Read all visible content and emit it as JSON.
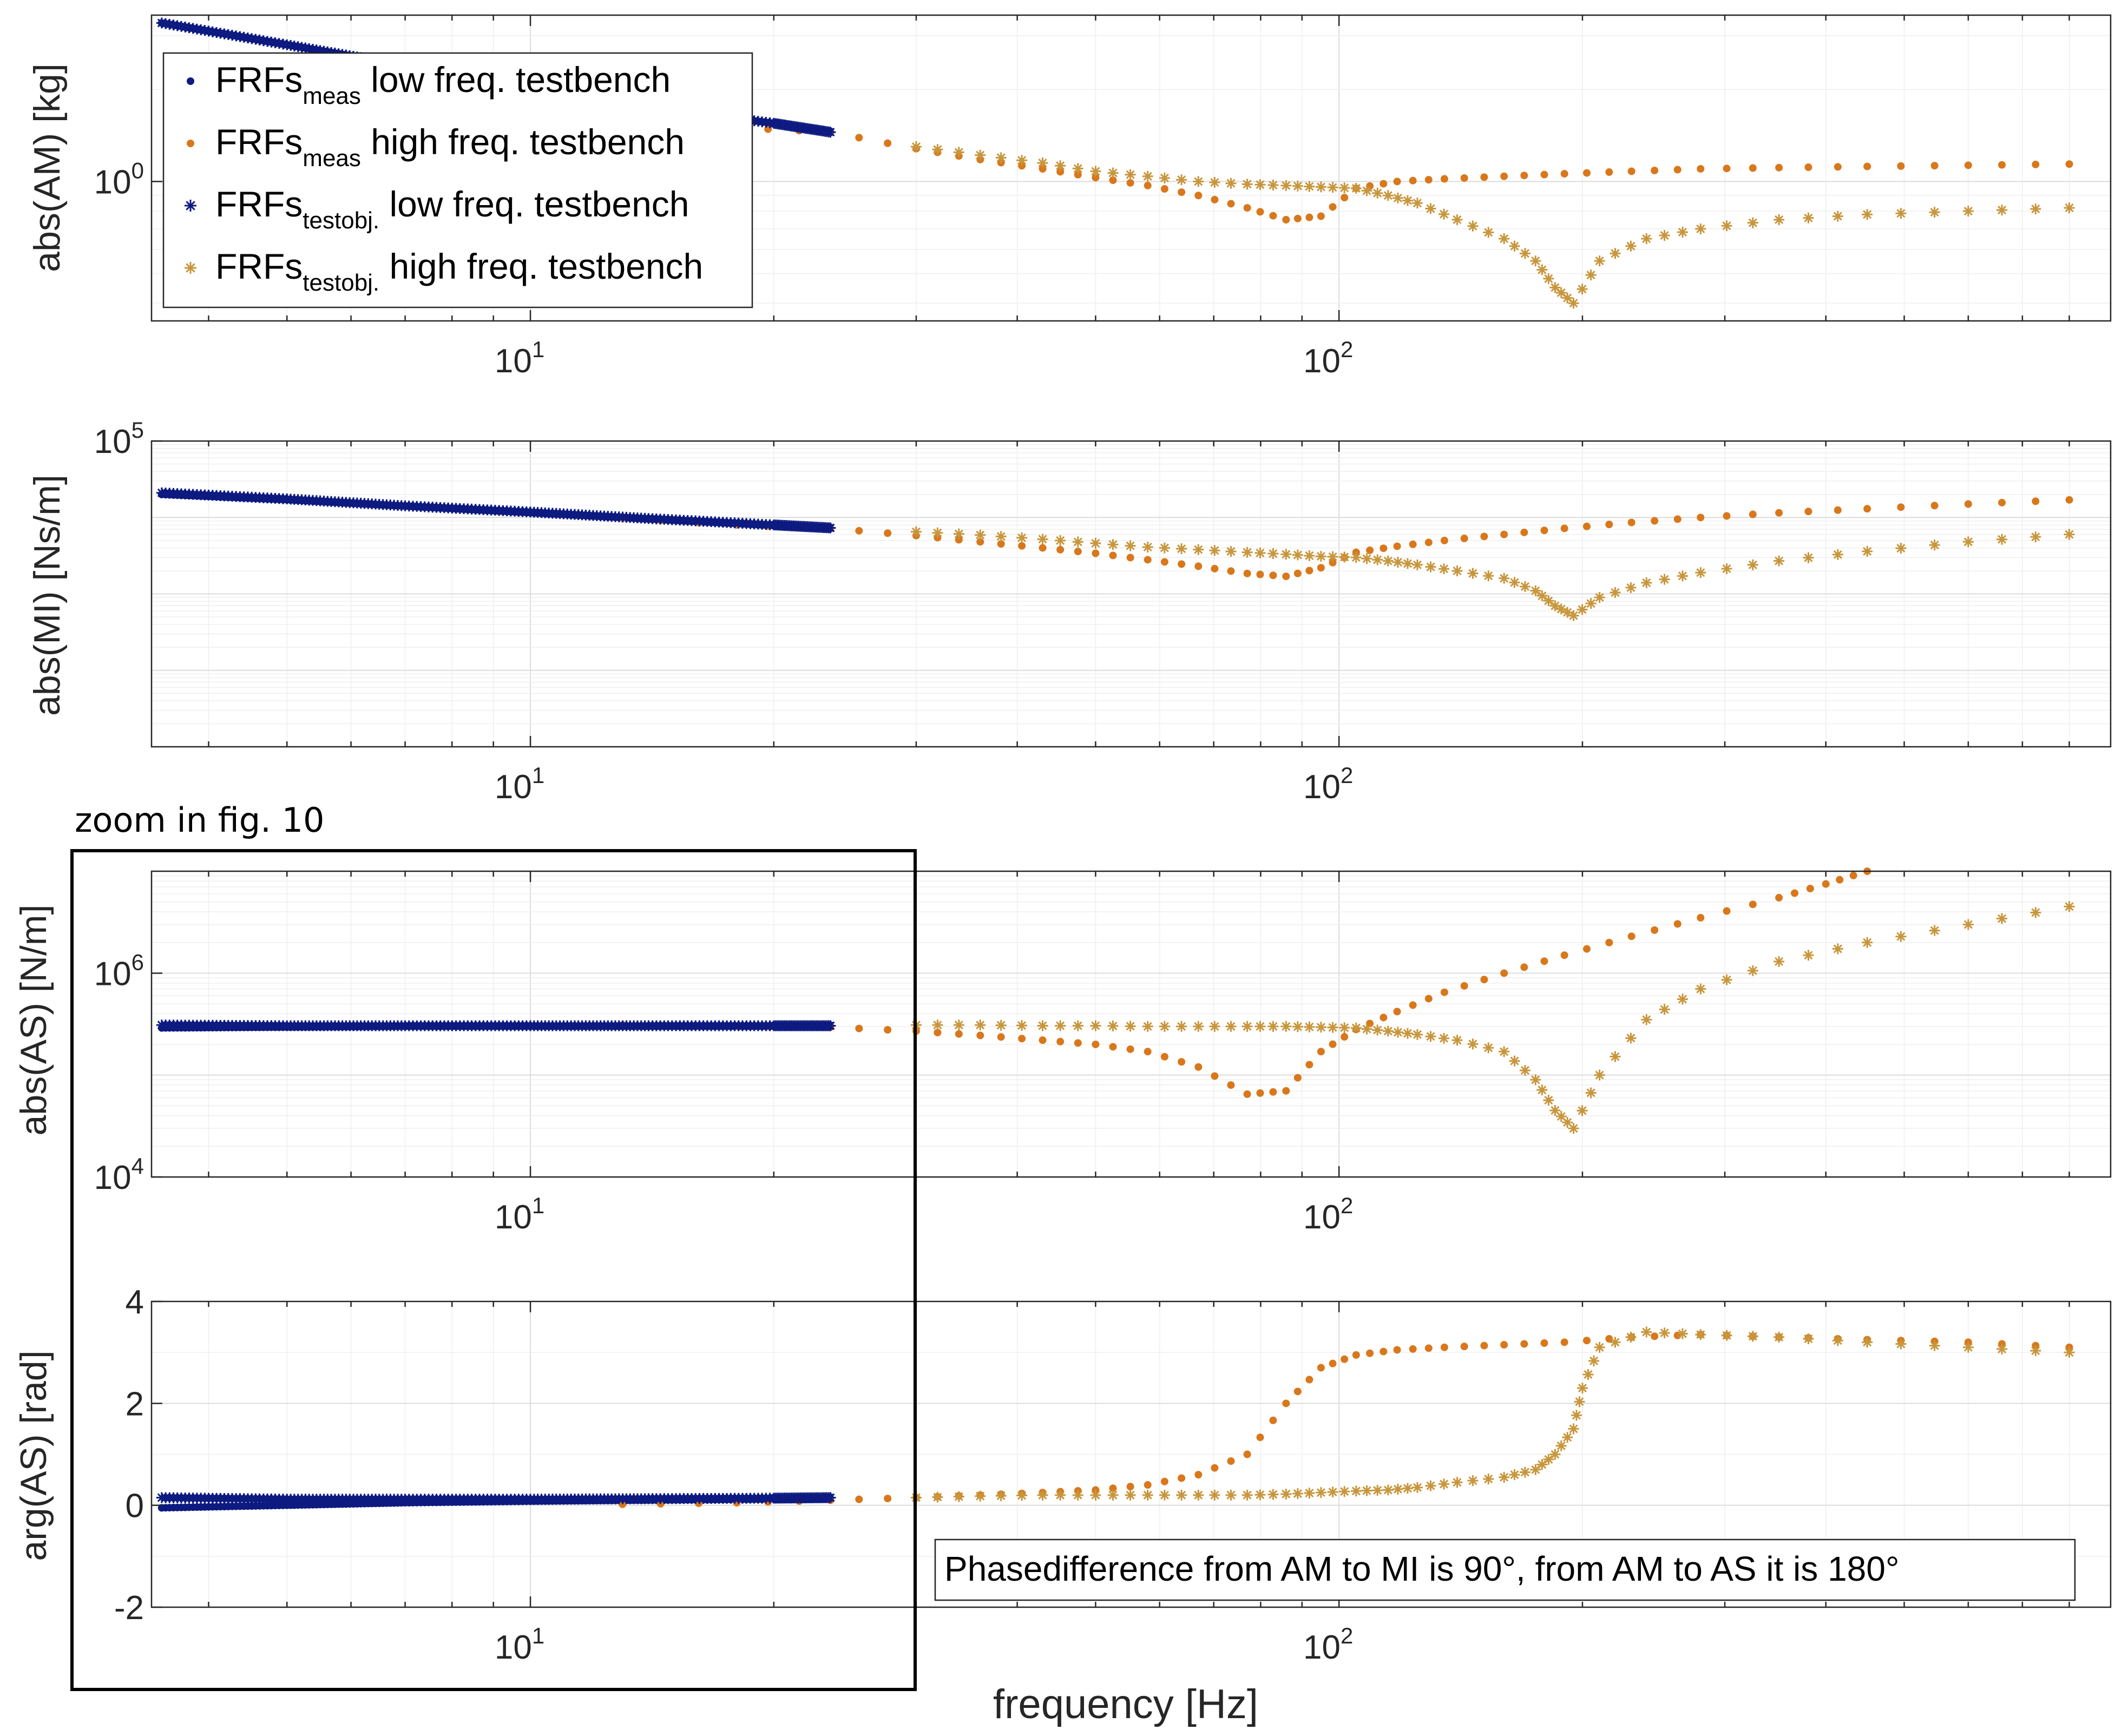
{
  "colors": {
    "low_freq": "#0d1a80",
    "high_freq_meas": "#d9771b",
    "high_freq_testobj": "#c8963c"
  },
  "legend": [
    {
      "base": "FRFs",
      "sub": "meas",
      "text": " low freq. testbench",
      "marker": "dot",
      "color": "#0d1a80"
    },
    {
      "base": "FRFs",
      "sub": "meas",
      "text": " high freq. testbench",
      "marker": "dot",
      "color": "#d9771b"
    },
    {
      "base": "FRFs",
      "sub": "testobj.",
      "text": " low freq. testbench",
      "marker": "star",
      "color": "#0d1a80"
    },
    {
      "base": "FRFs",
      "sub": "testobj.",
      "text": " high freq. testbench",
      "marker": "star",
      "color": "#c8963c"
    }
  ],
  "x_axis": {
    "label": "frequency [Hz]",
    "scale": "log",
    "xlim": [
      3.4,
      900
    ],
    "tick_labels": [
      {
        "base": "10",
        "exp": "1",
        "value": 10
      },
      {
        "base": "10",
        "exp": "2",
        "value": 100
      }
    ]
  },
  "annotations": {
    "zoom": "zoom in fig. 10",
    "phase_note": "Phasedifference from AM to MI is 90°, from AM to AS it is 180°"
  },
  "chart_data": [
    {
      "type": "scatter",
      "id": "am",
      "ylabel": "abs(AM) [kg]",
      "yscale": "log",
      "ylim": [
        0.35,
        3.5
      ],
      "ytick_labels": [
        {
          "base": "10",
          "exp": "0",
          "value": 1
        }
      ],
      "series": [
        {
          "name": "FRFs_meas low freq. testbench",
          "marker": "dot",
          "color": "#0d1a80",
          "x": [
            3.5,
            5,
            7,
            10,
            14,
            20,
            23.5
          ],
          "y": [
            3.3,
            2.8,
            2.4,
            2.0,
            1.75,
            1.55,
            1.45
          ]
        },
        {
          "name": "FRFs_meas high freq. testbench",
          "marker": "dot",
          "color": "#d9771b",
          "x": [
            13,
            18,
            23.5,
            30,
            36,
            43,
            50,
            58,
            67,
            77,
            86,
            95,
            105,
            118,
            135,
            160,
            190,
            230,
            280,
            350,
            450,
            600,
            800
          ],
          "y": [
            1.6,
            1.5,
            1.45,
            1.28,
            1.18,
            1.1,
            1.03,
            0.97,
            0.9,
            0.82,
            0.75,
            0.77,
            0.95,
            1.0,
            1.02,
            1.04,
            1.06,
            1.08,
            1.1,
            1.11,
            1.12,
            1.13,
            1.14
          ]
        },
        {
          "name": "FRFs_testobj. low freq. testbench",
          "marker": "star",
          "color": "#0d1a80",
          "x": [
            3.5,
            5,
            7,
            10,
            14,
            20,
            23.5
          ],
          "y": [
            3.3,
            2.8,
            2.4,
            2.0,
            1.75,
            1.55,
            1.45
          ]
        },
        {
          "name": "FRFs_testobj. high freq. testbench",
          "marker": "star",
          "color": "#c8963c",
          "x": [
            30,
            36,
            43,
            50,
            58,
            67,
            77,
            86,
            95,
            105,
            115,
            125,
            140,
            160,
            175,
            185,
            195,
            210,
            240,
            280,
            350,
            450,
            600,
            800
          ],
          "y": [
            1.3,
            1.22,
            1.15,
            1.08,
            1.04,
            1.0,
            0.98,
            0.97,
            0.96,
            0.95,
            0.9,
            0.85,
            0.75,
            0.65,
            0.55,
            0.45,
            0.4,
            0.55,
            0.65,
            0.7,
            0.75,
            0.78,
            0.8,
            0.82
          ]
        }
      ]
    },
    {
      "type": "scatter",
      "id": "mi",
      "ylabel": "abs(MI) [Ns/m]",
      "yscale": "log",
      "ylim": [
        10,
        100000
      ],
      "ytick_labels": [
        {
          "base": "10",
          "exp": "5",
          "value": 100000
        }
      ],
      "series": [
        {
          "name": "FRFs_meas low freq. testbench",
          "marker": "dot",
          "color": "#0d1a80",
          "x": [
            3.5,
            5,
            7,
            10,
            14,
            20,
            23.5
          ],
          "y": [
            20000,
            17000,
            14000,
            11500,
            9500,
            7800,
            7200
          ]
        },
        {
          "name": "FRFs_meas high freq. testbench",
          "marker": "dot",
          "color": "#d9771b",
          "x": [
            13,
            18,
            23.5,
            30,
            36,
            43,
            50,
            58,
            67,
            77,
            86,
            95,
            105,
            118,
            135,
            160,
            190,
            230,
            280,
            350,
            450,
            600,
            800
          ],
          "y": [
            9800,
            8000,
            7200,
            5800,
            4800,
            4000,
            3400,
            2800,
            2300,
            1850,
            1700,
            2200,
            3500,
            4200,
            5000,
            6000,
            7200,
            8600,
            10000,
            11500,
            13000,
            15000,
            17000
          ]
        },
        {
          "name": "FRFs_testobj. low freq. testbench",
          "marker": "star",
          "color": "#0d1a80",
          "x": [
            3.5,
            5,
            7,
            10,
            14,
            20,
            23.5
          ],
          "y": [
            21000,
            17500,
            14200,
            11800,
            9700,
            8000,
            7300
          ]
        },
        {
          "name": "FRFs_testobj. high freq. testbench",
          "marker": "star",
          "color": "#c8963c",
          "x": [
            30,
            36,
            43,
            50,
            58,
            67,
            77,
            86,
            95,
            105,
            115,
            125,
            140,
            160,
            175,
            185,
            195,
            210,
            240,
            280,
            350,
            450,
            600,
            800
          ],
          "y": [
            6500,
            5900,
            5200,
            4600,
            4100,
            3800,
            3500,
            3300,
            3100,
            3000,
            2700,
            2400,
            2000,
            1600,
            1100,
            700,
            520,
            900,
            1400,
            1900,
            2700,
            3600,
            4800,
            6000
          ]
        }
      ]
    },
    {
      "type": "scatter",
      "id": "as_abs",
      "ylabel": "abs(AS) [N/m]",
      "yscale": "log",
      "ylim": [
        10000,
        10000000
      ],
      "ytick_labels": [
        {
          "base": "10",
          "exp": "4",
          "value": 10000
        },
        {
          "base": "10",
          "exp": "6",
          "value": 1000000
        }
      ],
      "series": [
        {
          "name": "FRFs_meas low freq. testbench",
          "marker": "dot",
          "color": "#0d1a80",
          "x": [
            3.5,
            5,
            7,
            10,
            14,
            20,
            23.5
          ],
          "y": [
            290000,
            295000,
            300000,
            300000,
            300000,
            300000,
            300000
          ]
        },
        {
          "name": "FRFs_meas high freq. testbench",
          "marker": "dot",
          "color": "#d9771b",
          "x": [
            13,
            18,
            23.5,
            30,
            36,
            43,
            50,
            58,
            67,
            77,
            86,
            95,
            105,
            118,
            135,
            160,
            190,
            230,
            280,
            350,
            400,
            450
          ],
          "y": [
            310000,
            300000,
            295000,
            270000,
            245000,
            220000,
            200000,
            170000,
            120000,
            65000,
            70000,
            170000,
            280000,
            420000,
            650000,
            1000000,
            1500000,
            2300000,
            3500000,
            5500000,
            7500000,
            10000000
          ]
        },
        {
          "name": "FRFs_testobj. low freq. testbench",
          "marker": "star",
          "color": "#0d1a80",
          "x": [
            3.5,
            5,
            7,
            10,
            14,
            20,
            23.5
          ],
          "y": [
            310000,
            305000,
            305000,
            305000,
            305000,
            305000,
            305000
          ]
        },
        {
          "name": "FRFs_testobj. high freq. testbench",
          "marker": "star",
          "color": "#c8963c",
          "x": [
            30,
            36,
            43,
            50,
            58,
            67,
            77,
            86,
            95,
            105,
            115,
            125,
            140,
            160,
            175,
            185,
            195,
            210,
            240,
            280,
            350,
            450,
            600,
            800
          ],
          "y": [
            310000,
            310000,
            305000,
            305000,
            300000,
            300000,
            300000,
            300000,
            295000,
            290000,
            270000,
            250000,
            220000,
            170000,
            90000,
            45000,
            30000,
            100000,
            350000,
            700000,
            1300000,
            2000000,
            3000000,
            4500000
          ]
        }
      ]
    },
    {
      "type": "scatter",
      "id": "as_arg",
      "ylabel": "arg(AS) [rad]",
      "yscale": "linear",
      "ylim": [
        -2,
        4
      ],
      "ytick_labels": [
        {
          "text": "4",
          "value": 4
        },
        {
          "text": "2",
          "value": 2
        },
        {
          "text": "0",
          "value": 0
        },
        {
          "text": "-2",
          "value": -2
        }
      ],
      "series": [
        {
          "name": "FRFs_meas low freq. testbench",
          "marker": "dot",
          "color": "#0d1a80",
          "x": [
            3.5,
            5,
            7,
            10,
            14,
            20,
            23.5
          ],
          "y": [
            -0.05,
            0.0,
            0.05,
            0.08,
            0.1,
            0.12,
            0.13
          ]
        },
        {
          "name": "FRFs_meas high freq. testbench",
          "marker": "dot",
          "color": "#d9771b",
          "x": [
            13,
            18,
            23.5,
            30,
            36,
            43,
            50,
            58,
            67,
            77,
            86,
            95,
            105,
            118,
            135,
            160,
            190,
            230,
            280,
            350,
            450,
            600,
            800
          ],
          "y": [
            0.02,
            0.05,
            0.1,
            0.15,
            0.2,
            0.25,
            0.3,
            0.4,
            0.6,
            1.0,
            2.0,
            2.7,
            2.95,
            3.05,
            3.1,
            3.15,
            3.2,
            3.3,
            3.35,
            3.3,
            3.25,
            3.2,
            3.1
          ]
        },
        {
          "name": "FRFs_testobj. low freq. testbench",
          "marker": "star",
          "color": "#0d1a80",
          "x": [
            3.5,
            5,
            7,
            10,
            14,
            20,
            23.5
          ],
          "y": [
            0.15,
            0.12,
            0.12,
            0.12,
            0.13,
            0.14,
            0.15
          ]
        },
        {
          "name": "FRFs_testobj. high freq. testbench",
          "marker": "star",
          "color": "#c8963c",
          "x": [
            30,
            36,
            43,
            50,
            58,
            67,
            77,
            86,
            95,
            105,
            115,
            125,
            140,
            160,
            175,
            185,
            195,
            200,
            210,
            240,
            280,
            350,
            450,
            600,
            800
          ],
          "y": [
            0.15,
            0.18,
            0.2,
            0.2,
            0.2,
            0.2,
            0.2,
            0.22,
            0.25,
            0.28,
            0.3,
            0.35,
            0.45,
            0.55,
            0.7,
            1.0,
            1.5,
            2.3,
            3.1,
            3.4,
            3.35,
            3.3,
            3.2,
            3.1,
            3.0
          ]
        }
      ]
    }
  ]
}
